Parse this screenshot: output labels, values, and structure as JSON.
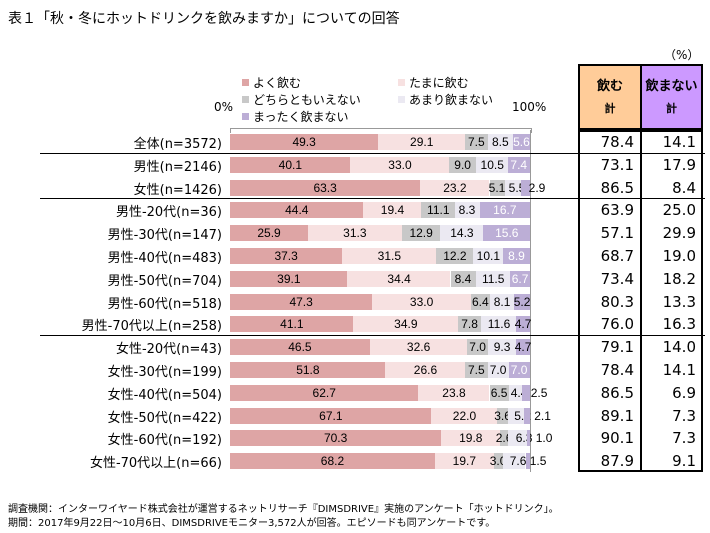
{
  "title": "表１「秋・冬にホットドリンクを飲みますか」についての回答",
  "unit": "（%）",
  "axis": {
    "min_label": "0%",
    "max_label": "100%"
  },
  "headers": {
    "drink": [
      "飲む",
      "計"
    ],
    "nodrink": [
      "飲まない",
      "計"
    ]
  },
  "colors": {
    "drink_header": "#ffcc99",
    "nodrink_header": "#cc99ff"
  },
  "footnotes": [
    "調査機関：インターワイヤード株式会社が運営するネットリサーチ『DIMSDRIVE』実施のアンケート「ホットドリンク」。",
    "期間：2017年9月22日～10月6日、DIMSDRIVEモニター3,572人が回答。エピソードも同アンケートです。"
  ],
  "chart_data": {
    "type": "bar",
    "stacked": true,
    "orientation": "horizontal",
    "xlim": [
      0,
      100
    ],
    "legend_placement": "top",
    "series": [
      {
        "name": "よく飲む",
        "color": "#dea5a5",
        "values": [
          49.3,
          40.1,
          63.3,
          44.4,
          25.9,
          37.3,
          39.1,
          47.3,
          41.1,
          46.5,
          51.8,
          62.7,
          67.1,
          70.3,
          68.2
        ]
      },
      {
        "name": "たまに飲む",
        "color": "#f7e1e1",
        "values": [
          29.1,
          33.0,
          23.2,
          19.4,
          31.3,
          31.5,
          34.4,
          33.0,
          34.9,
          32.6,
          26.6,
          23.8,
          22.0,
          19.8,
          19.7
        ]
      },
      {
        "name": "どちらともいえない",
        "color": "#c8c8c8",
        "values": [
          7.5,
          9.0,
          5.1,
          11.1,
          12.9,
          12.2,
          8.4,
          6.4,
          7.8,
          7.0,
          7.5,
          6.5,
          3.6,
          2.6,
          3.0
        ]
      },
      {
        "name": "あまり飲まない",
        "color": "#ebe9f2",
        "values": [
          8.5,
          10.5,
          5.5,
          8.3,
          14.3,
          10.1,
          11.5,
          8.1,
          11.6,
          9.3,
          7.0,
          4.4,
          5.2,
          6.3,
          7.6
        ]
      },
      {
        "name": "まったく飲まない",
        "color": "#bcaed6",
        "values": [
          5.6,
          7.4,
          2.9,
          16.7,
          15.6,
          8.9,
          6.7,
          5.2,
          4.7,
          4.7,
          7.0,
          2.5,
          2.1,
          1.0,
          1.5
        ]
      }
    ],
    "categories": [
      "全体(n=3572)",
      "男性(n=2146)",
      "女性(n=1426)",
      "男性-20代(n=36)",
      "男性-30代(n=147)",
      "男性-40代(n=483)",
      "男性-50代(n=704)",
      "男性-60代(n=518)",
      "男性-70代以上(n=258)",
      "女性-20代(n=43)",
      "女性-30代(n=199)",
      "女性-40代(n=504)",
      "女性-50代(n=422)",
      "女性-60代(n=192)",
      "女性-70代以上(n=66)"
    ],
    "drink_total": [
      "78.4",
      "73.1",
      "86.5",
      "63.9",
      "57.1",
      "68.7",
      "73.4",
      "80.3",
      "76.0",
      "79.1",
      "78.4",
      "86.5",
      "89.1",
      "90.1",
      "87.9"
    ],
    "nodrink_total": [
      "14.1",
      "17.9",
      "8.4",
      "25.0",
      "29.9",
      "19.0",
      "18.2",
      "13.3",
      "16.3",
      "14.0",
      "14.1",
      "6.9",
      "7.3",
      "7.3",
      "9.1"
    ]
  }
}
